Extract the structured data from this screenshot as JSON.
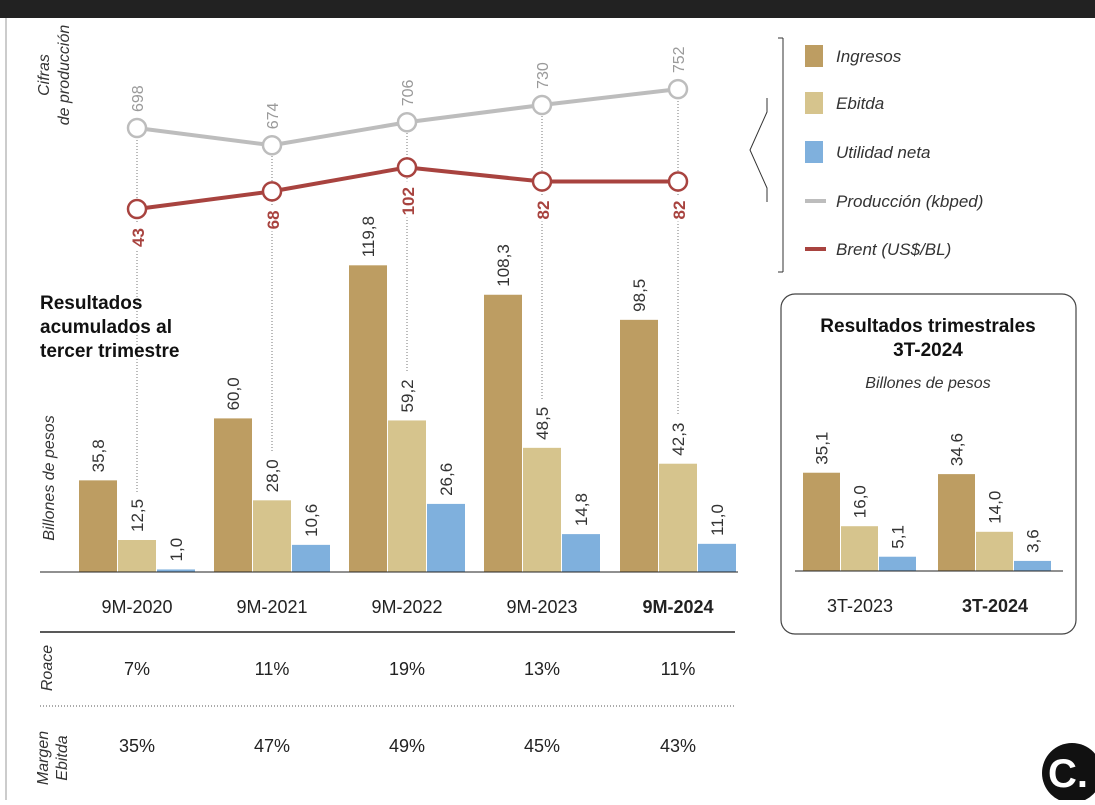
{
  "chart_data": [
    {
      "type": "bar",
      "title": "Resultados acumulados al tercer trimestre",
      "ylabel": "Billones de pesos",
      "categories": [
        "9M-2020",
        "9M-2021",
        "9M-2022",
        "9M-2023",
        "9M-2024"
      ],
      "highlight_category": "9M-2024",
      "bar_labels": [
        [
          "35,8",
          "12,5",
          "1,0"
        ],
        [
          "60,0",
          "28,0",
          "10,6"
        ],
        [
          "119,8",
          "59,2",
          "26,6"
        ],
        [
          "108,3",
          "48,5",
          "14,8"
        ],
        [
          "98,5",
          "42,3",
          "11,0"
        ]
      ],
      "series": [
        {
          "name": "Ingresos",
          "color": "#bd9d62",
          "values": [
            35.8,
            60.0,
            119.8,
            108.3,
            98.5
          ]
        },
        {
          "name": "Ebitda",
          "color": "#d6c48d",
          "values": [
            12.5,
            28.0,
            59.2,
            48.5,
            42.3
          ]
        },
        {
          "name": "Utilidad neta",
          "color": "#7fb0dd",
          "values": [
            1.0,
            10.6,
            26.6,
            14.8,
            11.0
          ]
        }
      ],
      "lines_title": "Cifras de producción",
      "lines": [
        {
          "name": "Producción (kbped)",
          "color": "#bdbdbd",
          "values": [
            698,
            674,
            706,
            730,
            752
          ],
          "labels": [
            "698",
            "674",
            "706",
            "730",
            "752"
          ]
        },
        {
          "name": "Brent (US$/BL)",
          "color": "#a8433f",
          "values": [
            43,
            68,
            102,
            82,
            82
          ],
          "labels": [
            "43",
            "68",
            "102",
            "82",
            "82"
          ]
        }
      ],
      "table": {
        "rows": [
          {
            "label": "Roace",
            "values": [
              "7%",
              "11%",
              "19%",
              "13%",
              "11%"
            ]
          },
          {
            "label": "Margen Ebitda",
            "values": [
              "35%",
              "47%",
              "49%",
              "45%",
              "43%"
            ]
          }
        ]
      }
    },
    {
      "type": "bar",
      "title": "Resultados trimestrales 3T-2024",
      "subtitle": "Billones de pesos",
      "categories": [
        "3T-2023",
        "3T-2024"
      ],
      "highlight_category": "3T-2024",
      "bar_labels": [
        [
          "35,1",
          "16,0",
          "5,1"
        ],
        [
          "34,6",
          "14,0",
          "3,6"
        ]
      ],
      "series": [
        {
          "name": "Ingresos",
          "color": "#bd9d62",
          "values": [
            35.1,
            34.6
          ]
        },
        {
          "name": "Ebitda",
          "color": "#d6c48d",
          "values": [
            16.0,
            14.0
          ]
        },
        {
          "name": "Utilidad neta",
          "color": "#7fb0dd",
          "values": [
            5.1,
            3.6
          ]
        }
      ]
    }
  ],
  "legend": [
    {
      "label": "Ingresos",
      "kind": "swatch",
      "color": "#bd9d62"
    },
    {
      "label": "Ebitda",
      "kind": "swatch",
      "color": "#d6c48d"
    },
    {
      "label": "Utilidad neta",
      "kind": "swatch",
      "color": "#7fb0dd"
    },
    {
      "label": "Producción (kbped)",
      "kind": "line",
      "color": "#bdbdbd"
    },
    {
      "label": "Brent (US$/BL)",
      "kind": "line",
      "color": "#a8433f"
    }
  ],
  "logo": {
    "letter": "C."
  }
}
